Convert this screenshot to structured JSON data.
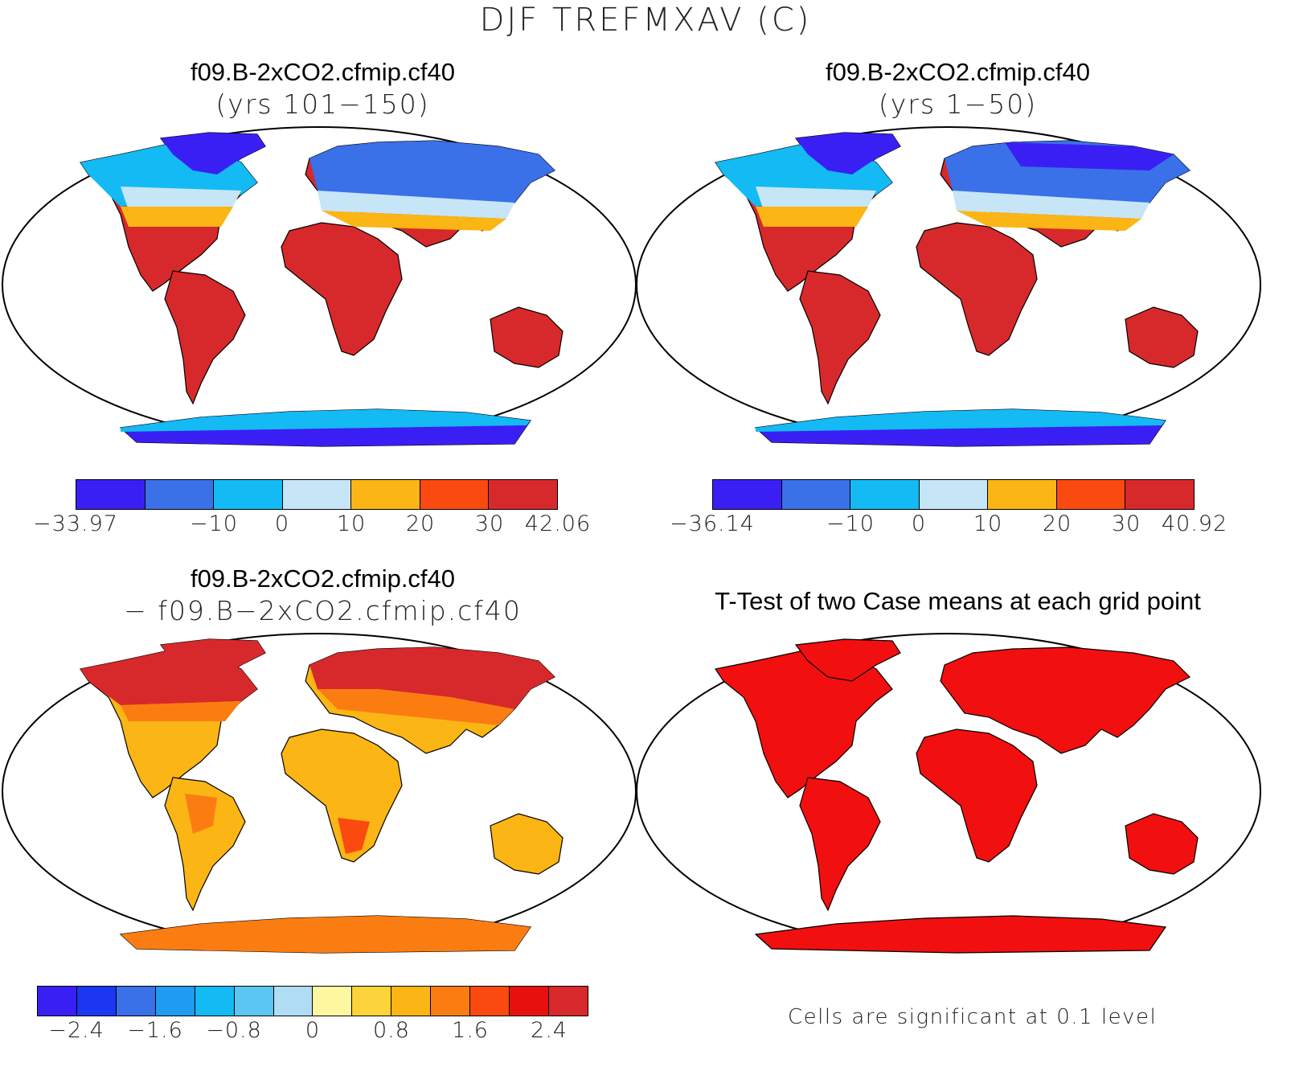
{
  "title": "DJF TREFMXAV (C)",
  "panels": {
    "p1": {
      "title1": "f09.B-2xCO2.cfmip.cf40",
      "title2": "(yrs 101−150)",
      "colors": [
        "#3a1ff5",
        "#3a70e8",
        "#14baf4",
        "#c6e6f7",
        "#fbb514",
        "#fb4a10",
        "#d7292b"
      ],
      "ticks": [
        "−33.97",
        "−10",
        "0",
        "10",
        "20",
        "30",
        "42.06"
      ]
    },
    "p2": {
      "title1": "f09.B-2xCO2.cfmip.cf40",
      "title2": "(yrs 1−50)",
      "colors": [
        "#3a1ff5",
        "#3a70e8",
        "#14baf4",
        "#c6e6f7",
        "#fbb514",
        "#fb4a10",
        "#d7292b"
      ],
      "ticks": [
        "−36.14",
        "−10",
        "0",
        "10",
        "20",
        "30",
        "40.92"
      ]
    },
    "p3": {
      "title1": "f09.B-2xCO2.cfmip.cf40",
      "title2": "− f09.B−2xCO2.cfmip.cf40",
      "colors": [
        "#3a1ff5",
        "#1b37f2",
        "#3a70e8",
        "#1f9bf2",
        "#14baf4",
        "#5bc6f2",
        "#b0dcf4",
        "#fdf7a0",
        "#fcd33a",
        "#fbb514",
        "#fb7d12",
        "#fb4a10",
        "#e8100e",
        "#d7292b"
      ],
      "ticks": [
        "−2.4",
        "−1.6",
        "−0.8",
        "0",
        "0.8",
        "1.6",
        "2.4"
      ]
    },
    "p4": {
      "title1": "T-Test of two Case means at each grid point",
      "note": "Cells are significant at 0.1 level",
      "fill": "#f20f0f"
    }
  }
}
